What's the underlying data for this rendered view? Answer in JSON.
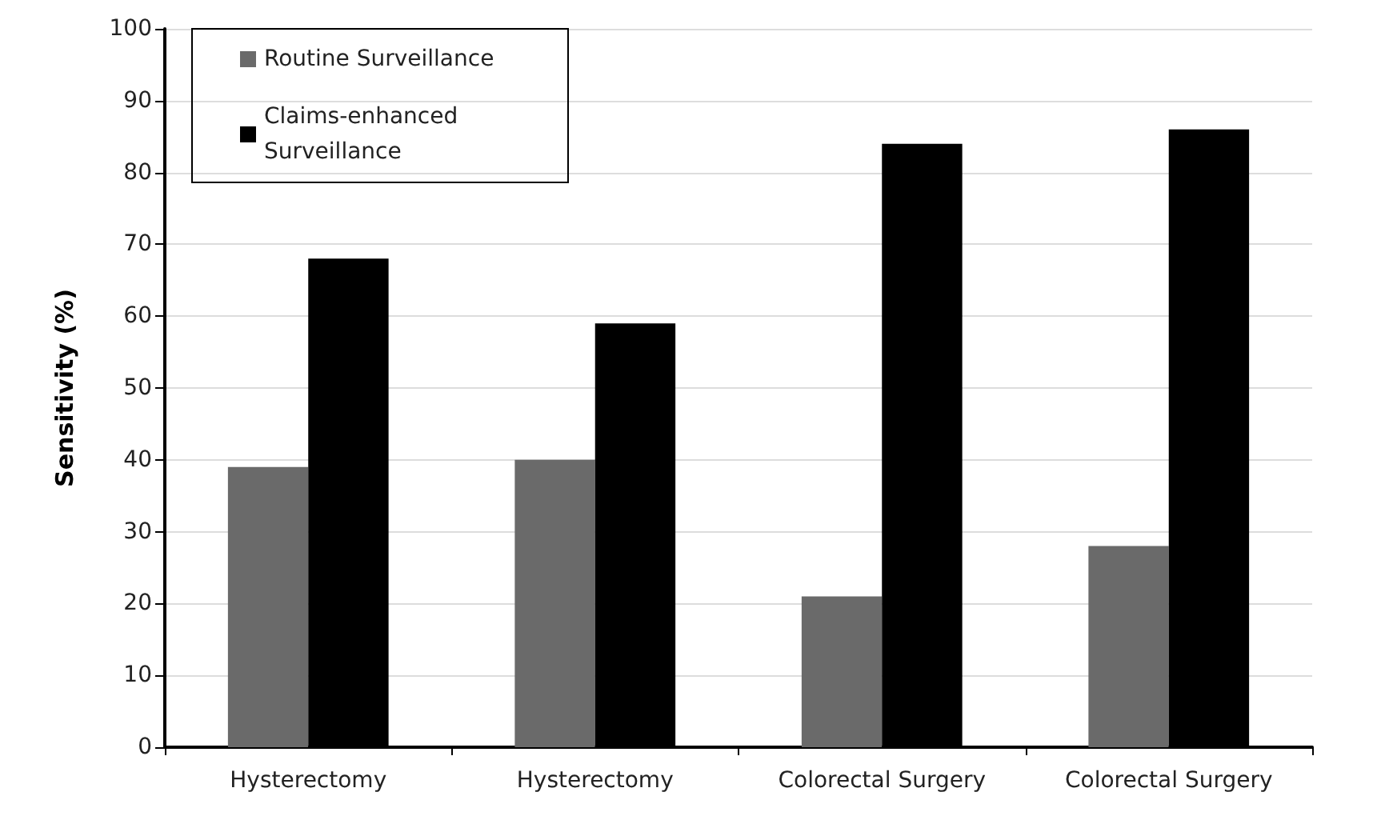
{
  "chart_data": {
    "type": "bar",
    "ylabel": "Sensitivity (%)",
    "categories": [
      "Hysterectomy",
      "Hysterectomy",
      "Colorectal Surgery",
      "Colorectal Surgery"
    ],
    "series": [
      {
        "name": "Routine Surveillance",
        "color": "#6a6a6a",
        "values": [
          39,
          40,
          21,
          28
        ]
      },
      {
        "name": "Claims-enhanced Surveillance",
        "color": "#000000",
        "values": [
          68,
          59,
          84,
          86
        ]
      }
    ],
    "ylim": [
      0,
      100
    ],
    "yticks": [
      0,
      10,
      20,
      30,
      40,
      50,
      60,
      70,
      80,
      90,
      100
    ],
    "grid": "y",
    "legend": "top left"
  }
}
